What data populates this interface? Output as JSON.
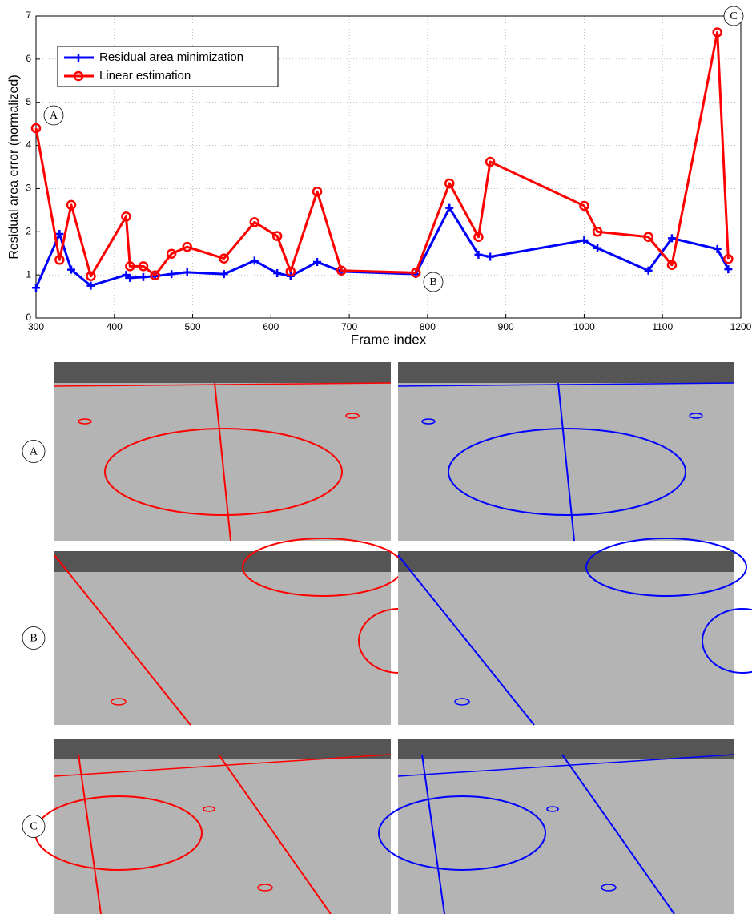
{
  "chart_data": {
    "type": "line",
    "xlabel": "Frame index",
    "ylabel": "Residual area error (normalized)",
    "x": [
      300,
      330,
      345,
      370,
      415,
      420,
      437,
      452,
      473,
      493,
      540,
      579,
      608,
      625,
      659,
      690,
      785,
      828,
      865,
      880,
      1000,
      1017,
      1082,
      1112,
      1170,
      1184
    ],
    "series": [
      {
        "name": "Residual area minimization",
        "color": "#0000ff",
        "marker": "plus",
        "values": [
          0.7,
          1.95,
          1.12,
          0.75,
          1.0,
          0.93,
          0.95,
          0.97,
          1.02,
          1.06,
          1.02,
          1.33,
          1.04,
          0.97,
          1.3,
          1.08,
          1.02,
          2.55,
          1.47,
          1.42,
          1.8,
          1.62,
          1.1,
          1.85,
          1.6,
          1.13
        ]
      },
      {
        "name": "Linear estimation",
        "color": "#ff0000",
        "marker": "circle",
        "values": [
          4.4,
          1.35,
          2.62,
          0.97,
          2.35,
          1.2,
          1.2,
          0.99,
          1.49,
          1.65,
          1.38,
          2.22,
          1.9,
          1.08,
          2.93,
          1.1,
          1.05,
          3.12,
          1.88,
          3.62,
          2.6,
          2.0,
          1.88,
          1.23,
          6.62,
          1.37
        ]
      }
    ],
    "xlim": [
      300,
      1200
    ],
    "xticks": [
      300,
      400,
      500,
      600,
      700,
      800,
      900,
      1000,
      1100,
      1200
    ],
    "ylim": [
      0,
      7
    ],
    "yticks": [
      0,
      1,
      2,
      3,
      4,
      5,
      6,
      7
    ],
    "grid": true,
    "legend": "upper-left",
    "annotations": [
      "A",
      "B",
      "C"
    ]
  },
  "panels": {
    "rows": [
      {
        "label": "A"
      },
      {
        "label": "B"
      },
      {
        "label": "C"
      }
    ]
  }
}
